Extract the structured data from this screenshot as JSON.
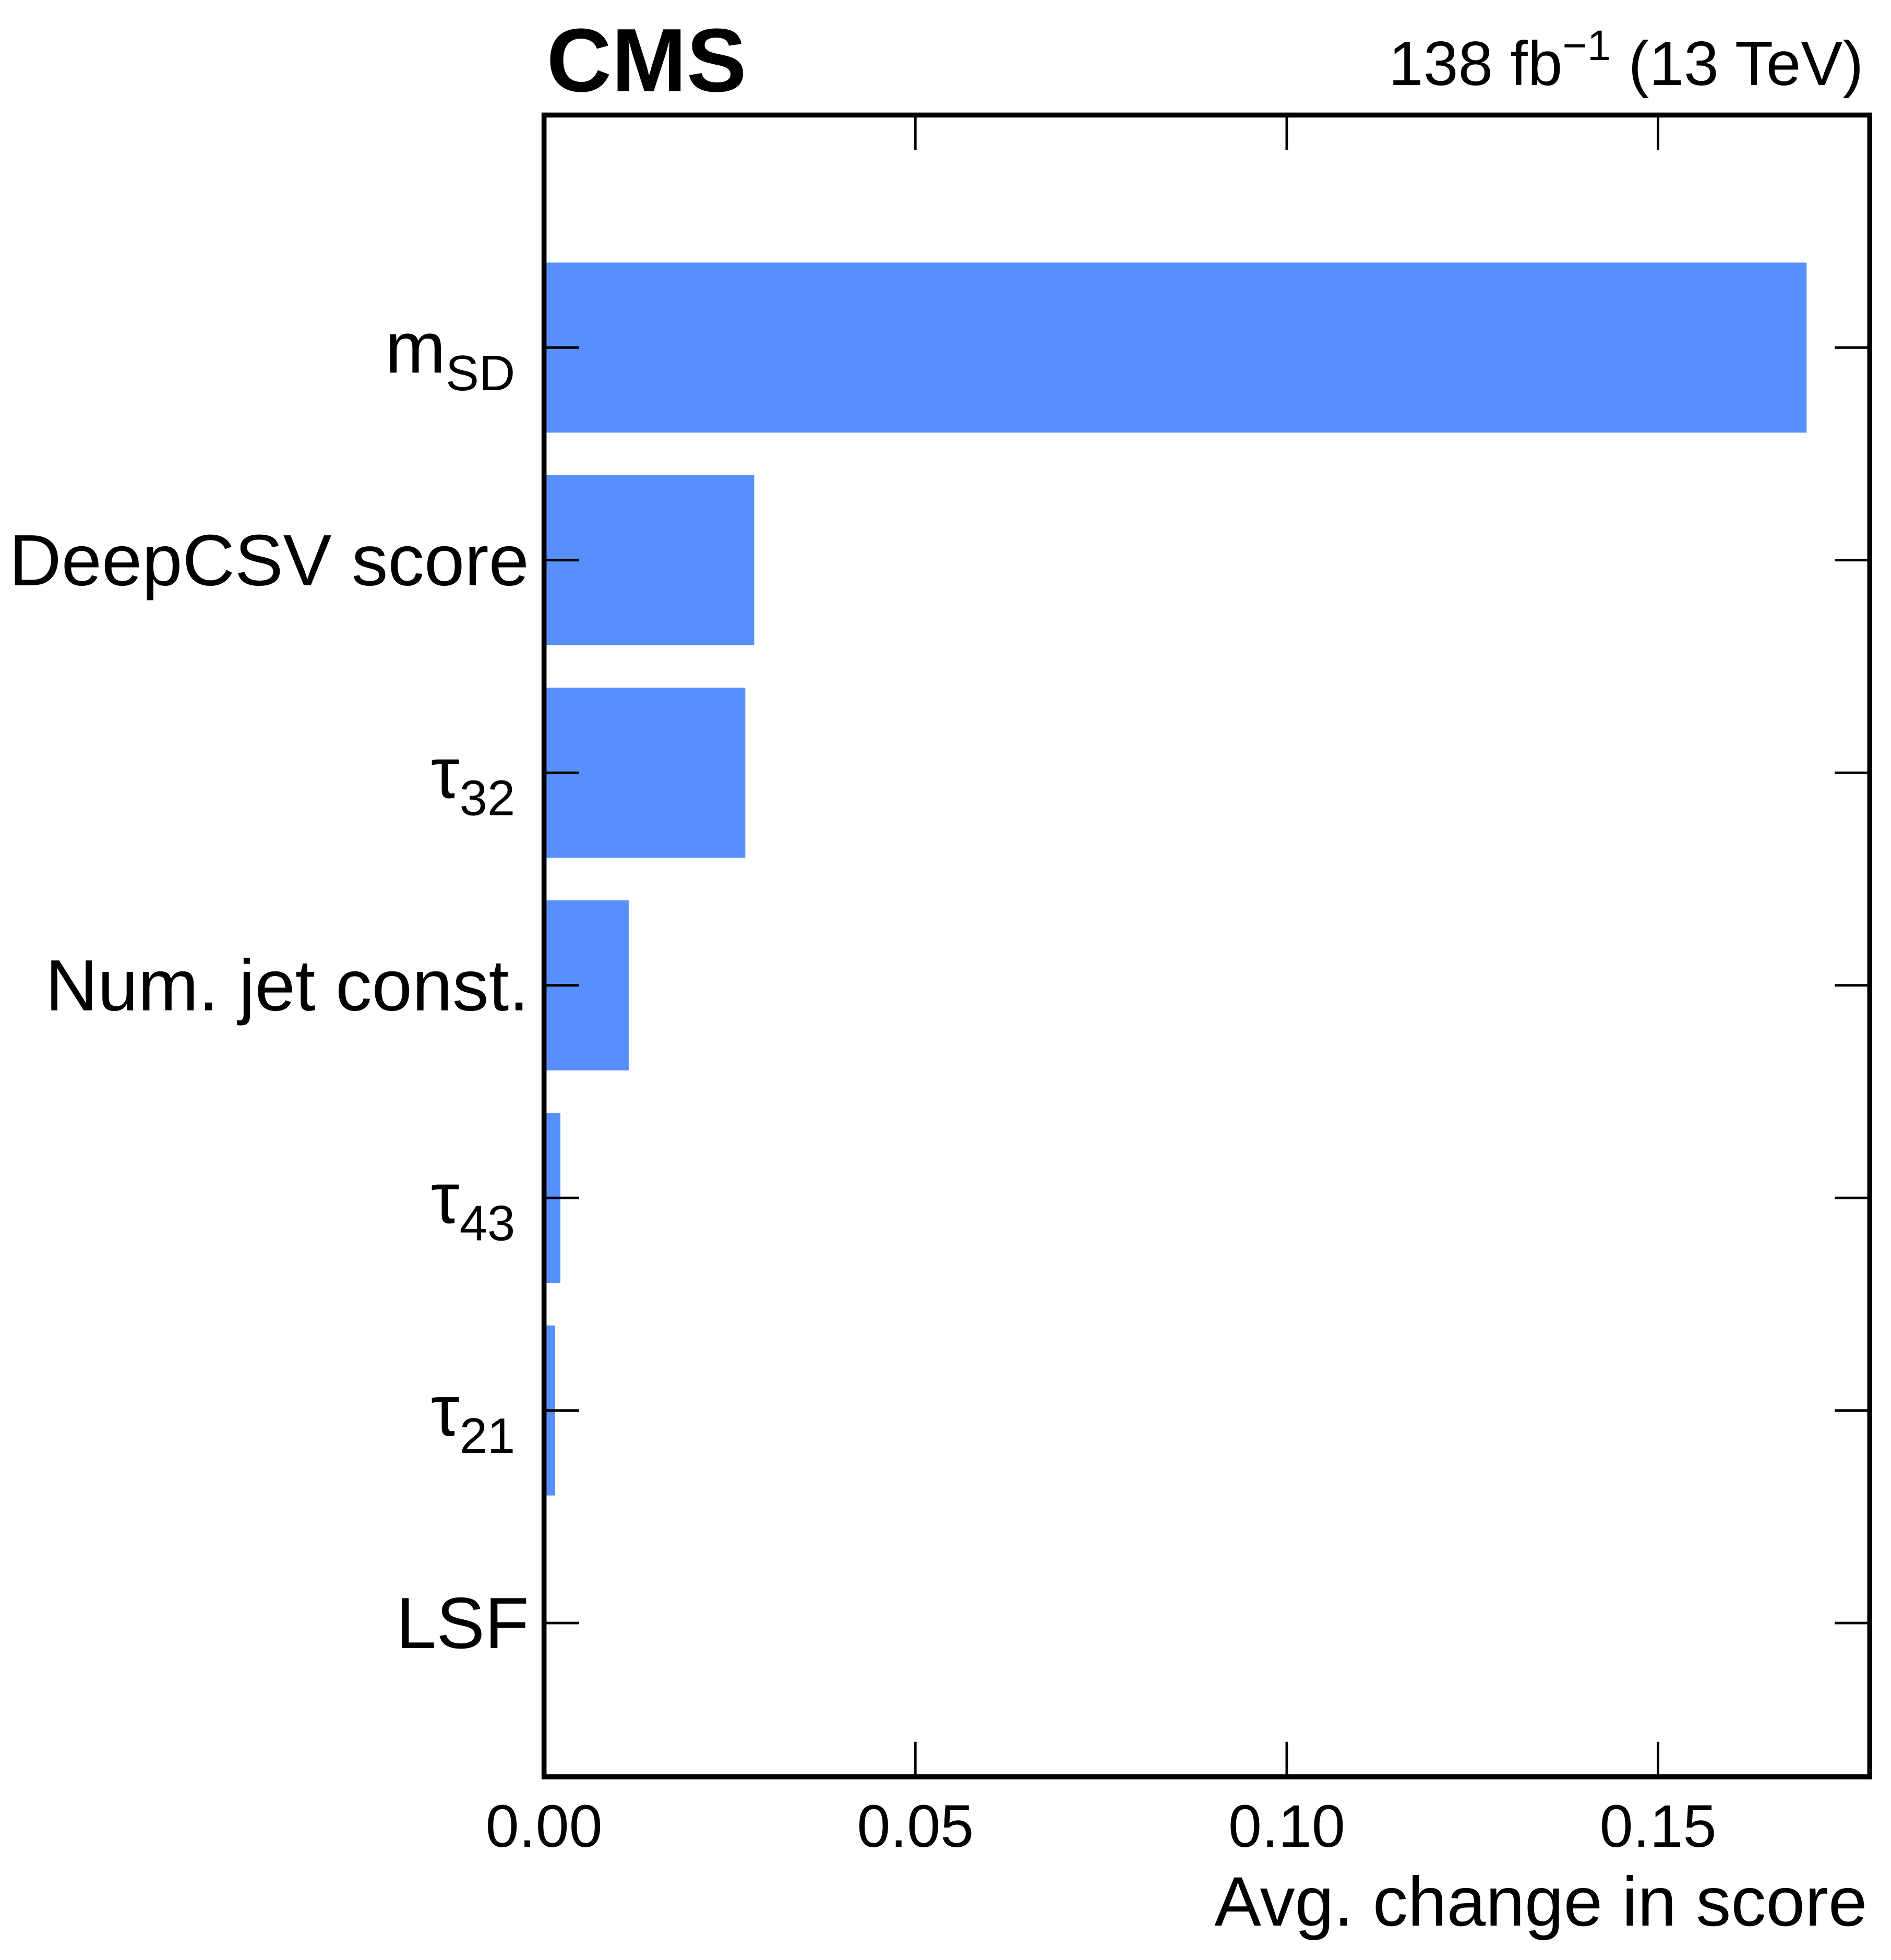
{
  "chart_data": {
    "type": "barh",
    "experiment": "CMS",
    "lumi": "138 fb",
    "lumi_exponent": "−1",
    "energy": "(13 TeV)",
    "x_label": "Avg. change in score",
    "categories": [
      "m",
      "DeepCSV score",
      "τ",
      "Num. jet const.",
      "τ",
      "τ",
      "LSF"
    ],
    "category_subscripts": [
      "SD",
      null,
      "32",
      null,
      "43",
      "21",
      null
    ],
    "values": [
      0.17,
      0.0283,
      0.0271,
      0.0114,
      0.0022,
      0.0015,
      0.0003
    ],
    "color": "#5790fc",
    "xlim": [
      0,
      0.1785
    ],
    "xticks": [
      {
        "value": 0,
        "label": "0.00"
      },
      {
        "value": 0.05,
        "label": "0.05"
      },
      {
        "value": 0.1,
        "label": "0.10"
      },
      {
        "value": 0.15,
        "label": "0.15"
      }
    ]
  }
}
